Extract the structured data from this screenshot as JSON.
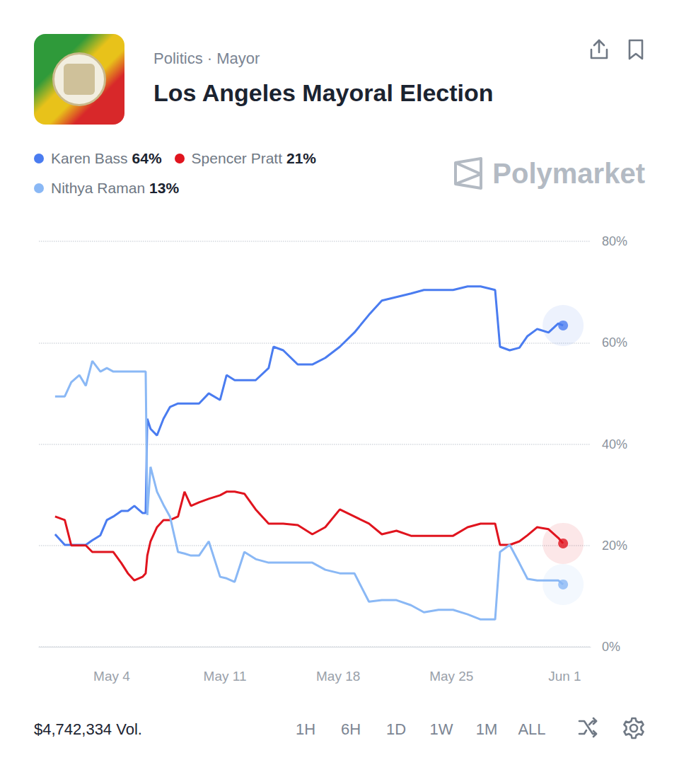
{
  "chart_data": {
    "type": "line",
    "title": "Los Angeles Mayoral Election",
    "subtitle": "Politics · Mayor",
    "x": [
      0.5,
      1.1,
      1.5,
      2.0,
      2.4,
      2.8,
      3.3,
      3.7,
      4.1,
      4.6,
      5.0,
      5.4,
      5.9,
      6.1,
      6.2,
      6.4,
      6.8,
      7.2,
      7.6,
      8.1,
      8.5,
      8.9,
      9.4,
      10.0,
      10.7,
      11.1,
      11.6,
      12.2,
      12.9,
      13.7,
      14.0,
      14.6,
      15.5,
      16.4,
      17.2,
      18.1,
      19.0,
      19.9,
      20.7,
      21.6,
      22.5,
      23.3,
      24.2,
      25.1,
      26.0,
      26.8,
      27.7,
      28.0,
      28.6,
      29.2,
      29.7,
      30.3,
      31.0,
      31.6,
      31.9
    ],
    "xlim": [
      -0.5,
      33.6
    ],
    "xticks": [
      {
        "value": 4,
        "label": "May 4"
      },
      {
        "value": 11,
        "label": "May 11"
      },
      {
        "value": 18,
        "label": "May 18"
      },
      {
        "value": 25,
        "label": "May 25"
      },
      {
        "value": 32,
        "label": "Jun 1"
      }
    ],
    "ylim": [
      0,
      80
    ],
    "yticks": [
      {
        "value": 0,
        "label": "0%"
      },
      {
        "value": 20,
        "label": "20%"
      },
      {
        "value": 40,
        "label": "40%"
      },
      {
        "value": 60,
        "label": "60%"
      },
      {
        "value": 80,
        "label": "80%"
      }
    ],
    "grid": true,
    "legend": "top-left",
    "line_style": "solid",
    "series": [
      {
        "name": "Karen Bass",
        "color": "#4a7cf0",
        "current": {
          "value": 64,
          "label": "64%"
        },
        "values": [
          22.2,
          20.1,
          20.1,
          20.1,
          20.1,
          21.0,
          22.0,
          25.0,
          25.7,
          26.8,
          26.8,
          27.8,
          26.4,
          26.4,
          45.0,
          43.0,
          41.7,
          45.0,
          47.3,
          48.0,
          48.0,
          48.0,
          48.0,
          50.0,
          48.7,
          53.6,
          52.6,
          52.6,
          52.6,
          55.0,
          59.2,
          58.5,
          55.7,
          55.7,
          57.0,
          59.2,
          62.0,
          65.5,
          68.3,
          69.0,
          69.7,
          70.4,
          70.4,
          70.4,
          71.1,
          71.1,
          70.4,
          59.2,
          58.5,
          59.0,
          61.3,
          62.7,
          62.0,
          63.8,
          63.4
        ]
      },
      {
        "name": "Spencer Pratt",
        "color": "#e0141e",
        "current": {
          "value": 21,
          "label": "21%"
        },
        "values": [
          25.7,
          25.0,
          20.0,
          20.0,
          20.0,
          18.7,
          18.7,
          18.7,
          18.7,
          16.5,
          14.5,
          13.1,
          13.8,
          14.5,
          18.0,
          20.8,
          23.6,
          25.0,
          25.0,
          25.7,
          30.6,
          27.8,
          28.5,
          29.2,
          29.9,
          30.6,
          30.6,
          30.2,
          27.1,
          24.3,
          24.3,
          24.3,
          24.0,
          22.2,
          23.6,
          27.1,
          25.7,
          24.3,
          22.2,
          22.9,
          21.9,
          21.9,
          21.9,
          21.9,
          23.6,
          24.3,
          24.3,
          20.1,
          20.1,
          20.8,
          22.0,
          23.6,
          23.2,
          21.5,
          20.4
        ]
      },
      {
        "name": "Nithya Raman",
        "color": "#8ab8f5",
        "current": {
          "value": 13,
          "label": "13%"
        },
        "values": [
          49.4,
          49.4,
          52.2,
          53.6,
          51.5,
          56.4,
          54.3,
          55.0,
          54.3,
          54.3,
          54.3,
          54.3,
          54.3,
          54.3,
          26.0,
          35.5,
          30.6,
          28.0,
          25.7,
          18.7,
          18.4,
          18.0,
          18.0,
          20.8,
          13.8,
          13.5,
          12.8,
          18.7,
          17.3,
          16.6,
          16.6,
          16.6,
          16.6,
          16.6,
          15.2,
          14.5,
          14.5,
          8.9,
          9.2,
          9.2,
          8.2,
          6.8,
          7.3,
          7.3,
          6.4,
          5.4,
          5.4,
          18.7,
          20.1,
          16.5,
          13.4,
          13.1,
          13.1,
          13.1,
          12.3
        ]
      }
    ]
  },
  "watermark": "Polymarket",
  "volume": "$4,742,334 Vol.",
  "time_ranges": [
    "1H",
    "6H",
    "1D",
    "1W",
    "1M",
    "ALL"
  ]
}
